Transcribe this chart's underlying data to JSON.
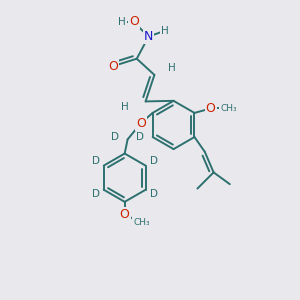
{
  "background_color": "#e9e9ed",
  "bond_color": "#2d7070",
  "bond_width": 1.4,
  "atom_colors": {
    "O": "#cc2200",
    "N": "#1a1acc",
    "H": "#2d7070",
    "C": "#1a1a1a",
    "D": "#2d7070"
  },
  "figsize": [
    3.0,
    3.0
  ],
  "dpi": 100
}
